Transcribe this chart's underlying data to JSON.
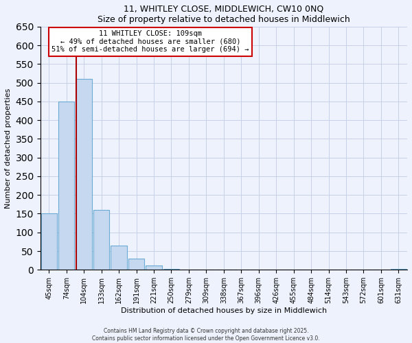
{
  "title": "11, WHITLEY CLOSE, MIDDLEWICH, CW10 0NQ",
  "subtitle": "Size of property relative to detached houses in Middlewich",
  "xlabel": "Distribution of detached houses by size in Middlewich",
  "ylabel": "Number of detached properties",
  "bar_labels": [
    "45sqm",
    "74sqm",
    "104sqm",
    "133sqm",
    "162sqm",
    "191sqm",
    "221sqm",
    "250sqm",
    "279sqm",
    "309sqm",
    "338sqm",
    "367sqm",
    "396sqm",
    "426sqm",
    "455sqm",
    "484sqm",
    "514sqm",
    "543sqm",
    "572sqm",
    "601sqm",
    "631sqm"
  ],
  "bar_values": [
    150,
    450,
    510,
    160,
    65,
    30,
    12,
    2,
    0,
    0,
    0,
    0,
    0,
    0,
    0,
    0,
    0,
    0,
    0,
    0,
    2
  ],
  "bar_color": "#c5d8f0",
  "bar_edge_color": "#6aaad4",
  "vline_color": "#aa0000",
  "annotation_title": "11 WHITLEY CLOSE: 109sqm",
  "annotation_line1": "← 49% of detached houses are smaller (680)",
  "annotation_line2": "51% of semi-detached houses are larger (694) →",
  "annotation_box_color": "#ffffff",
  "annotation_box_edge": "#cc0000",
  "ylim": [
    0,
    650
  ],
  "yticks": [
    0,
    50,
    100,
    150,
    200,
    250,
    300,
    350,
    400,
    450,
    500,
    550,
    600,
    650
  ],
  "footer1": "Contains HM Land Registry data © Crown copyright and database right 2025.",
  "footer2": "Contains public sector information licensed under the Open Government Licence v3.0.",
  "bg_color": "#eef2fc",
  "grid_color": "#c8d0e8"
}
